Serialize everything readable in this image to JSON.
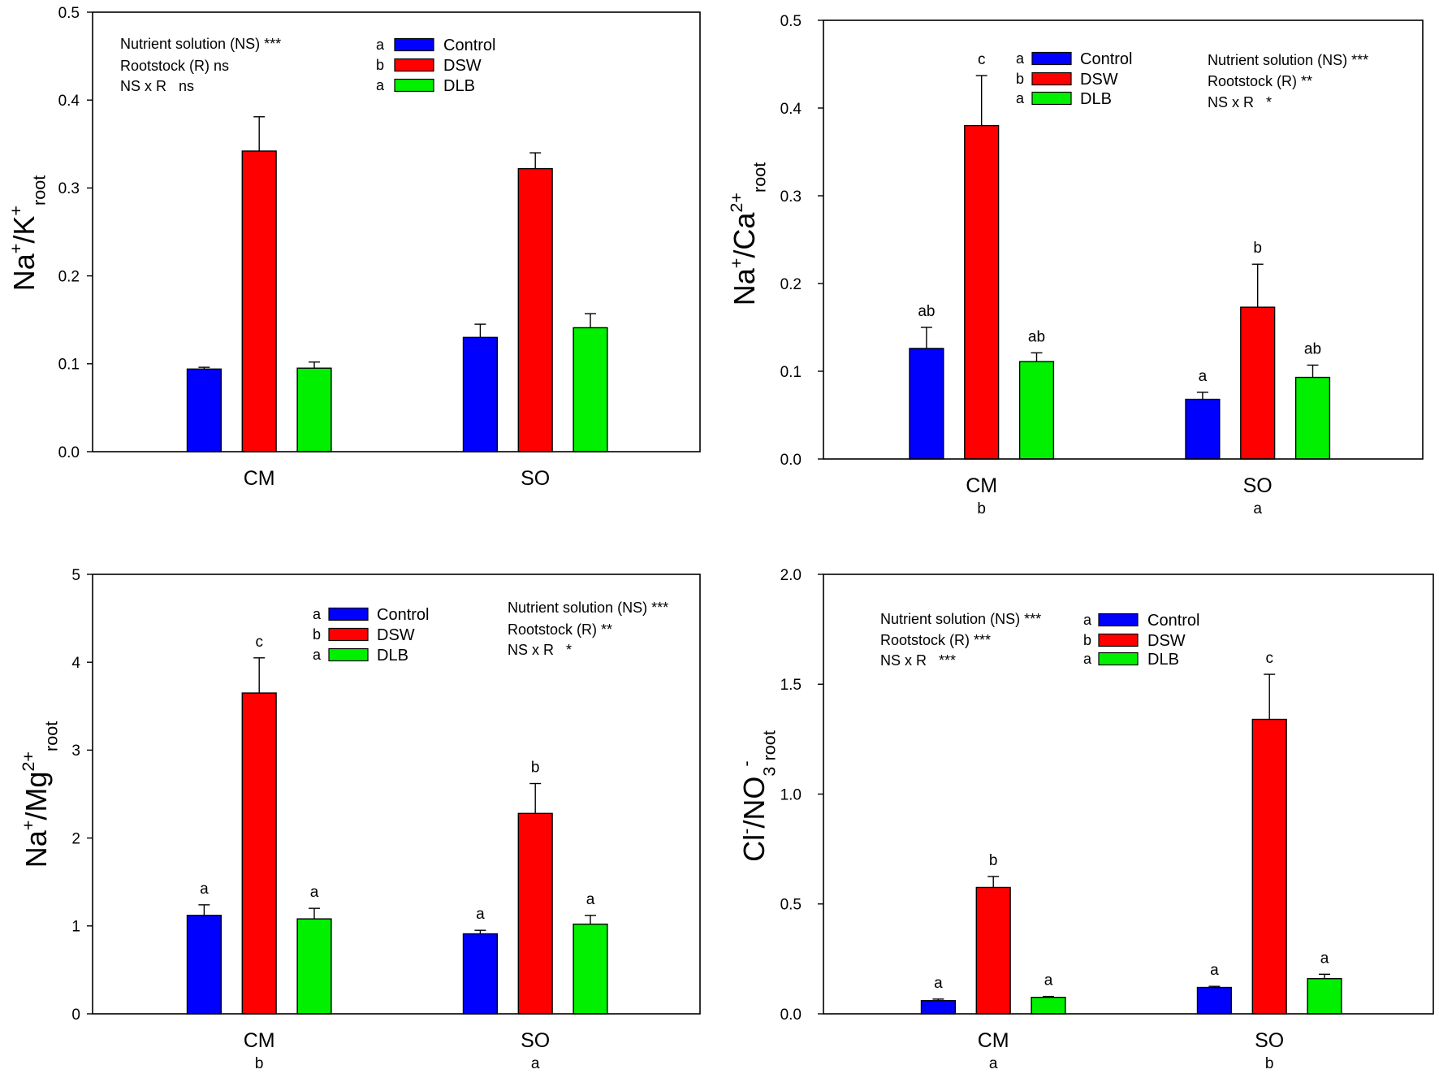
{
  "chart_data": [
    {
      "type": "bar",
      "ylabel_parts": [
        {
          "t": "Na"
        },
        {
          "t": "+",
          "sup": true
        },
        {
          "t": "/K"
        },
        {
          "t": "+",
          "sup": true
        },
        {
          "t": "root",
          "sub": true
        }
      ],
      "categories": [
        "CM",
        "SO"
      ],
      "ylim": [
        0,
        0.5
      ],
      "yticks": [
        0,
        0.1,
        0.2,
        0.3,
        0.4,
        0.5
      ],
      "ytick_labels": [
        "0.0",
        "0.1",
        "0.2",
        "0.3",
        "0.4",
        "0.5"
      ],
      "stats": [
        "Nutrient solution (NS) ***",
        "Rootstock (R) ns",
        "NS x R   ns"
      ],
      "series": [
        {
          "name": "Control",
          "legend_letter": "a",
          "color": "#0000ff",
          "values": [
            0.094,
            0.13
          ],
          "errors": [
            0.002,
            0.015
          ]
        },
        {
          "name": "DSW",
          "legend_letter": "b",
          "color": "#ff0000",
          "values": [
            0.342,
            0.322
          ],
          "errors": [
            0.039,
            0.018
          ]
        },
        {
          "name": "DLB",
          "legend_letter": "a",
          "color": "#00f000",
          "values": [
            0.095,
            0.141
          ],
          "errors": [
            0.007,
            0.016
          ]
        }
      ]
    },
    {
      "type": "bar",
      "ylabel_parts": [
        {
          "t": "Na"
        },
        {
          "t": "+",
          "sup": true
        },
        {
          "t": "/Ca"
        },
        {
          "t": "2+",
          "sup": true
        },
        {
          "t": "root",
          "sub": true
        }
      ],
      "categories": [
        "CM",
        "SO"
      ],
      "category_letters": [
        "b",
        "a"
      ],
      "ylim": [
        0,
        0.5
      ],
      "yticks": [
        0,
        0.1,
        0.2,
        0.3,
        0.4,
        0.5
      ],
      "ytick_labels": [
        "0.0",
        "0.1",
        "0.2",
        "0.3",
        "0.4",
        "0.5"
      ],
      "stats": [
        "Nutrient solution (NS) ***",
        "Rootstock (R) **",
        "NS x R   *"
      ],
      "series": [
        {
          "name": "Control",
          "legend_letter": "a",
          "color": "#0000ff",
          "values": [
            0.126,
            0.068
          ],
          "errors": [
            0.024,
            0.008
          ],
          "letters": [
            "ab",
            "a"
          ]
        },
        {
          "name": "DSW",
          "legend_letter": "b",
          "color": "#ff0000",
          "values": [
            0.38,
            0.173
          ],
          "errors": [
            0.057,
            0.049
          ],
          "letters": [
            "c",
            "b"
          ]
        },
        {
          "name": "DLB",
          "legend_letter": "a",
          "color": "#00f000",
          "values": [
            0.111,
            0.093
          ],
          "errors": [
            0.01,
            0.014
          ],
          "letters": [
            "ab",
            "ab"
          ]
        }
      ]
    },
    {
      "type": "bar",
      "ylabel_parts": [
        {
          "t": "Na"
        },
        {
          "t": "+",
          "sup": true
        },
        {
          "t": "/Mg"
        },
        {
          "t": "2+",
          "sup": true
        },
        {
          "t": "root",
          "sub": true
        }
      ],
      "categories": [
        "CM",
        "SO"
      ],
      "category_letters": [
        "b",
        "a"
      ],
      "ylim": [
        0,
        5
      ],
      "yticks": [
        0,
        1,
        2,
        3,
        4,
        5
      ],
      "ytick_labels": [
        "0",
        "1",
        "2",
        "3",
        "4",
        "5"
      ],
      "stats": [
        "Nutrient solution (NS) ***",
        "Rootstock (R) **",
        "NS x R   *"
      ],
      "series": [
        {
          "name": "Control",
          "legend_letter": "a",
          "color": "#0000ff",
          "values": [
            1.12,
            0.91
          ],
          "errors": [
            0.12,
            0.04
          ],
          "letters": [
            "a",
            "a"
          ]
        },
        {
          "name": "DSW",
          "legend_letter": "b",
          "color": "#ff0000",
          "values": [
            3.65,
            2.28
          ],
          "errors": [
            0.4,
            0.34
          ],
          "letters": [
            "c",
            "b"
          ]
        },
        {
          "name": "DLB",
          "legend_letter": "a",
          "color": "#00f000",
          "values": [
            1.08,
            1.02
          ],
          "errors": [
            0.12,
            0.1
          ],
          "letters": [
            "a",
            "a"
          ]
        }
      ]
    },
    {
      "type": "bar",
      "ylabel_parts": [
        {
          "t": "Cl"
        },
        {
          "t": "-",
          "sup": true
        },
        {
          "t": "/NO"
        },
        {
          "t": "3",
          "sub": true
        },
        {
          "t": "-",
          "sup": true
        },
        {
          "t": "root",
          "sub": true
        }
      ],
      "categories": [
        "CM",
        "SO"
      ],
      "category_letters": [
        "a",
        "b"
      ],
      "ylim": [
        0,
        2.0
      ],
      "yticks": [
        0,
        0.5,
        1.0,
        1.5,
        2.0
      ],
      "ytick_labels": [
        "0.0",
        "0.5",
        "1.0",
        "1.5",
        "2.0"
      ],
      "stats": [
        "Nutrient solution (NS) ***",
        "Rootstock (R) ***",
        "NS x R   ***"
      ],
      "series": [
        {
          "name": "Control",
          "legend_letter": "a",
          "color": "#0000ff",
          "values": [
            0.06,
            0.12
          ],
          "errors": [
            0.007,
            0.005
          ],
          "letters": [
            "a",
            "a"
          ]
        },
        {
          "name": "DSW",
          "legend_letter": "b",
          "color": "#ff0000",
          "values": [
            0.575,
            1.34
          ],
          "errors": [
            0.05,
            0.205
          ],
          "letters": [
            "b",
            "c"
          ]
        },
        {
          "name": "DLB",
          "legend_letter": "a",
          "color": "#00f000",
          "values": [
            0.075,
            0.16
          ],
          "errors": [
            0.004,
            0.02
          ],
          "letters": [
            "a",
            "a"
          ]
        }
      ]
    }
  ]
}
